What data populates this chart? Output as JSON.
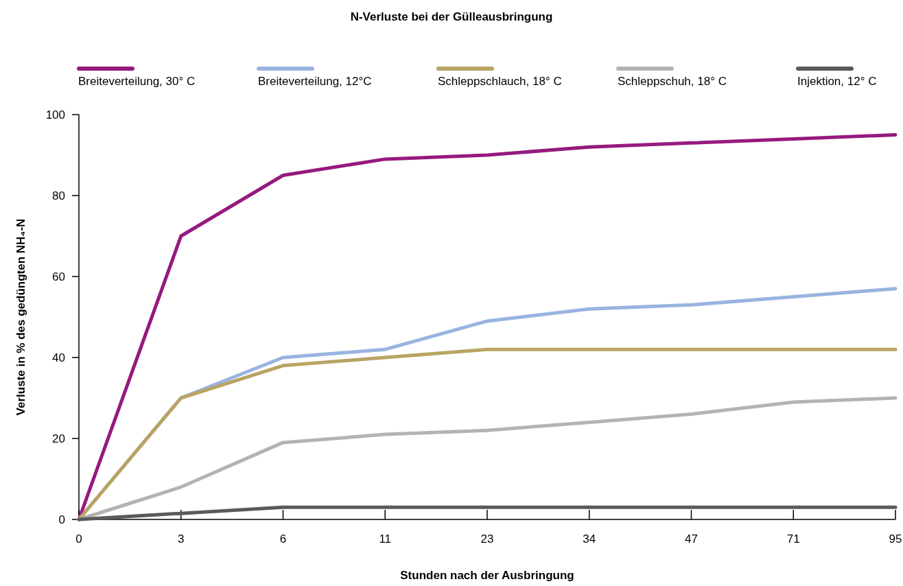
{
  "chart_data": {
    "type": "line",
    "title": "N-Verluste bei der Gülleausbringung",
    "xlabel": "Stunden nach der Ausbringung",
    "ylabel": "Verluste in % des gedüngten NH₄-N",
    "categories": [
      "0",
      "3",
      "6",
      "11",
      "23",
      "34",
      "47",
      "71",
      "95"
    ],
    "ylim": [
      0,
      100
    ],
    "yticks": [
      0,
      20,
      40,
      60,
      80,
      100
    ],
    "series": [
      {
        "name": "Breiteverteilung, 30° C",
        "color": "#961a7e",
        "values": [
          0,
          70,
          85,
          89,
          90,
          92,
          93,
          94,
          95
        ]
      },
      {
        "name": "Breiteverteilung, 12°C",
        "color": "#98b4e0",
        "values": [
          0,
          30,
          40,
          42,
          49,
          52,
          53,
          55,
          57
        ]
      },
      {
        "name": "Schleppschlauch, 18° C",
        "color": "#b8a463",
        "values": [
          0,
          30,
          38,
          40,
          42,
          42,
          42,
          42,
          42
        ]
      },
      {
        "name": "Schleppschuh, 18° C",
        "color": "#b3b3b3",
        "values": [
          0,
          8,
          19,
          21,
          22,
          24,
          26,
          29,
          30
        ]
      },
      {
        "name": "Injektion, 12° C",
        "color": "#5a5a5a",
        "values": [
          0,
          1.5,
          3,
          3,
          3,
          3,
          3,
          3,
          3
        ]
      }
    ],
    "legend": "top",
    "grid": false,
    "marker": "none",
    "line_style": "solid"
  }
}
